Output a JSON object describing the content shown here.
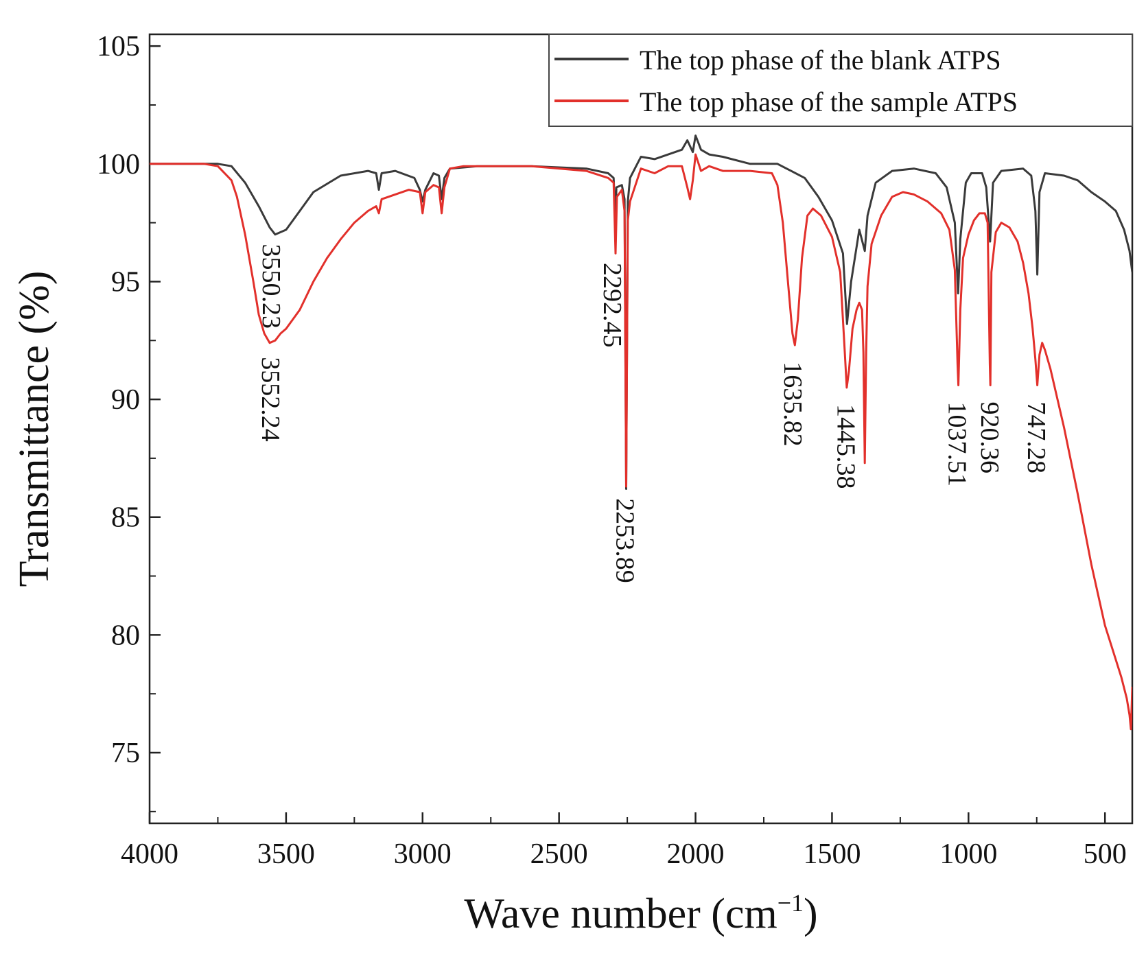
{
  "chart_data": {
    "type": "line",
    "title": "",
    "xlabel": "Wave number (cm",
    "xlabel_sup": "−1",
    "xlabel_close": ")",
    "ylabel": "Transmittance (%)",
    "xlim": [
      4000,
      400
    ],
    "ylim": [
      72,
      105.5
    ],
    "x_reversed": true,
    "grid": false,
    "legend_position": "top-right",
    "x_ticks": [
      4000,
      3500,
      3000,
      2500,
      2000,
      1500,
      1000,
      500
    ],
    "x_tick_labels": [
      "4000",
      "3500",
      "3000",
      "2500",
      "2000",
      "1500",
      "1000",
      "500"
    ],
    "y_ticks": [
      75,
      80,
      85,
      90,
      95,
      100,
      105
    ],
    "y_tick_labels": [
      "75",
      "80",
      "85",
      "90",
      "95",
      "100",
      "105"
    ],
    "series": [
      {
        "name": "The top phase of the blank ATPS",
        "color": "#3a3a3a",
        "points": [
          [
            4000,
            100.0
          ],
          [
            3900,
            100.0
          ],
          [
            3750,
            100.0
          ],
          [
            3700,
            99.9
          ],
          [
            3650,
            99.2
          ],
          [
            3600,
            98.2
          ],
          [
            3560,
            97.3
          ],
          [
            3540,
            97.0
          ],
          [
            3500,
            97.2
          ],
          [
            3450,
            98.0
          ],
          [
            3400,
            98.8
          ],
          [
            3300,
            99.5
          ],
          [
            3200,
            99.7
          ],
          [
            3170,
            99.6
          ],
          [
            3160,
            98.9
          ],
          [
            3150,
            99.6
          ],
          [
            3100,
            99.7
          ],
          [
            3030,
            99.4
          ],
          [
            3010,
            98.9
          ],
          [
            3000,
            98.4
          ],
          [
            2990,
            98.9
          ],
          [
            2960,
            99.6
          ],
          [
            2940,
            99.5
          ],
          [
            2930,
            98.5
          ],
          [
            2920,
            99.4
          ],
          [
            2900,
            99.8
          ],
          [
            2800,
            99.9
          ],
          [
            2600,
            99.9
          ],
          [
            2400,
            99.8
          ],
          [
            2320,
            99.6
          ],
          [
            2300,
            99.4
          ],
          [
            2293,
            97.5
          ],
          [
            2290,
            99.0
          ],
          [
            2270,
            99.1
          ],
          [
            2260,
            98.5
          ],
          [
            2254,
            86.2
          ],
          [
            2248,
            98.4
          ],
          [
            2240,
            99.4
          ],
          [
            2200,
            100.3
          ],
          [
            2150,
            100.2
          ],
          [
            2100,
            100.4
          ],
          [
            2050,
            100.6
          ],
          [
            2030,
            101.0
          ],
          [
            2010,
            100.5
          ],
          [
            2000,
            101.2
          ],
          [
            1980,
            100.6
          ],
          [
            1950,
            100.4
          ],
          [
            1900,
            100.3
          ],
          [
            1800,
            100.0
          ],
          [
            1700,
            100.0
          ],
          [
            1650,
            99.7
          ],
          [
            1600,
            99.4
          ],
          [
            1550,
            98.6
          ],
          [
            1500,
            97.6
          ],
          [
            1460,
            96.2
          ],
          [
            1445,
            93.2
          ],
          [
            1430,
            95.0
          ],
          [
            1400,
            97.2
          ],
          [
            1380,
            96.3
          ],
          [
            1370,
            97.8
          ],
          [
            1340,
            99.2
          ],
          [
            1280,
            99.7
          ],
          [
            1200,
            99.8
          ],
          [
            1120,
            99.6
          ],
          [
            1080,
            99.0
          ],
          [
            1050,
            97.5
          ],
          [
            1038,
            94.5
          ],
          [
            1030,
            96.8
          ],
          [
            1010,
            99.2
          ],
          [
            990,
            99.6
          ],
          [
            950,
            99.6
          ],
          [
            935,
            99.0
          ],
          [
            921,
            96.7
          ],
          [
            910,
            99.2
          ],
          [
            880,
            99.7
          ],
          [
            800,
            99.8
          ],
          [
            770,
            99.5
          ],
          [
            755,
            98.0
          ],
          [
            748,
            95.3
          ],
          [
            740,
            98.8
          ],
          [
            720,
            99.6
          ],
          [
            650,
            99.5
          ],
          [
            600,
            99.3
          ],
          [
            550,
            98.8
          ],
          [
            500,
            98.4
          ],
          [
            460,
            98.0
          ],
          [
            430,
            97.2
          ],
          [
            410,
            96.3
          ],
          [
            400,
            95.4
          ]
        ]
      },
      {
        "name": "The top phase of the sample ATPS",
        "color": "#e2302b",
        "points": [
          [
            4000,
            100.0
          ],
          [
            3900,
            100.0
          ],
          [
            3800,
            100.0
          ],
          [
            3750,
            99.9
          ],
          [
            3700,
            99.3
          ],
          [
            3680,
            98.6
          ],
          [
            3650,
            97.0
          ],
          [
            3620,
            95.0
          ],
          [
            3600,
            93.6
          ],
          [
            3580,
            92.8
          ],
          [
            3560,
            92.4
          ],
          [
            3540,
            92.5
          ],
          [
            3520,
            92.8
          ],
          [
            3500,
            93.0
          ],
          [
            3450,
            93.8
          ],
          [
            3400,
            95.0
          ],
          [
            3350,
            96.0
          ],
          [
            3300,
            96.8
          ],
          [
            3250,
            97.5
          ],
          [
            3200,
            98.0
          ],
          [
            3170,
            98.2
          ],
          [
            3160,
            97.9
          ],
          [
            3150,
            98.5
          ],
          [
            3100,
            98.7
          ],
          [
            3050,
            98.9
          ],
          [
            3010,
            98.8
          ],
          [
            3000,
            97.9
          ],
          [
            2990,
            98.8
          ],
          [
            2960,
            99.1
          ],
          [
            2940,
            99.0
          ],
          [
            2930,
            97.9
          ],
          [
            2920,
            99.0
          ],
          [
            2900,
            99.8
          ],
          [
            2850,
            99.9
          ],
          [
            2800,
            99.9
          ],
          [
            2600,
            99.9
          ],
          [
            2400,
            99.7
          ],
          [
            2320,
            99.4
          ],
          [
            2300,
            99.2
          ],
          [
            2293,
            96.2
          ],
          [
            2288,
            98.6
          ],
          [
            2270,
            98.9
          ],
          [
            2260,
            98.0
          ],
          [
            2254,
            86.3
          ],
          [
            2248,
            97.6
          ],
          [
            2240,
            98.4
          ],
          [
            2200,
            99.8
          ],
          [
            2150,
            99.6
          ],
          [
            2100,
            99.9
          ],
          [
            2050,
            99.9
          ],
          [
            2030,
            99.0
          ],
          [
            2020,
            98.5
          ],
          [
            2010,
            99.3
          ],
          [
            2000,
            100.4
          ],
          [
            1980,
            99.7
          ],
          [
            1950,
            99.9
          ],
          [
            1900,
            99.7
          ],
          [
            1800,
            99.7
          ],
          [
            1720,
            99.6
          ],
          [
            1700,
            99.1
          ],
          [
            1680,
            97.5
          ],
          [
            1660,
            94.8
          ],
          [
            1645,
            92.8
          ],
          [
            1636,
            92.3
          ],
          [
            1625,
            93.4
          ],
          [
            1610,
            96.0
          ],
          [
            1590,
            97.8
          ],
          [
            1570,
            98.1
          ],
          [
            1540,
            97.8
          ],
          [
            1500,
            96.9
          ],
          [
            1470,
            95.4
          ],
          [
            1455,
            92.4
          ],
          [
            1446,
            90.5
          ],
          [
            1438,
            91.2
          ],
          [
            1425,
            93.0
          ],
          [
            1410,
            93.8
          ],
          [
            1400,
            94.1
          ],
          [
            1390,
            93.8
          ],
          [
            1385,
            92.0
          ],
          [
            1380,
            87.3
          ],
          [
            1375,
            92.0
          ],
          [
            1370,
            94.8
          ],
          [
            1355,
            96.6
          ],
          [
            1320,
            97.8
          ],
          [
            1280,
            98.6
          ],
          [
            1240,
            98.8
          ],
          [
            1200,
            98.7
          ],
          [
            1150,
            98.4
          ],
          [
            1100,
            97.9
          ],
          [
            1070,
            97.2
          ],
          [
            1050,
            95.5
          ],
          [
            1040,
            91.5
          ],
          [
            1037,
            90.6
          ],
          [
            1030,
            93.8
          ],
          [
            1020,
            96.0
          ],
          [
            1000,
            97.0
          ],
          [
            980,
            97.6
          ],
          [
            960,
            97.9
          ],
          [
            940,
            97.9
          ],
          [
            930,
            97.5
          ],
          [
            922,
            91.5
          ],
          [
            920,
            90.6
          ],
          [
            916,
            95.4
          ],
          [
            900,
            97.1
          ],
          [
            880,
            97.5
          ],
          [
            850,
            97.3
          ],
          [
            820,
            96.7
          ],
          [
            800,
            95.8
          ],
          [
            780,
            94.5
          ],
          [
            765,
            93.0
          ],
          [
            755,
            91.7
          ],
          [
            748,
            90.6
          ],
          [
            740,
            91.9
          ],
          [
            730,
            92.4
          ],
          [
            720,
            92.1
          ],
          [
            700,
            91.3
          ],
          [
            650,
            88.8
          ],
          [
            600,
            86.0
          ],
          [
            550,
            83.0
          ],
          [
            500,
            80.4
          ],
          [
            470,
            79.3
          ],
          [
            440,
            78.2
          ],
          [
            420,
            77.3
          ],
          [
            410,
            76.6
          ],
          [
            405,
            76.0
          ],
          [
            402,
            77.0
          ],
          [
            400,
            77.8
          ]
        ]
      }
    ],
    "annotations": [
      {
        "text": "3550.23",
        "x": 3550,
        "y": 96.6,
        "color": "#222222"
      },
      {
        "text": "3552.24",
        "x": 3552,
        "y": 91.8,
        "color": "#222222"
      },
      {
        "text": "2292.45",
        "x": 2300,
        "y": 95.8,
        "color": "#222222"
      },
      {
        "text": "2253.89",
        "x": 2254,
        "y": 85.8,
        "color": "#222222"
      },
      {
        "text": "1635.82",
        "x": 1640,
        "y": 91.6,
        "color": "#222222"
      },
      {
        "text": "1445.38",
        "x": 1445,
        "y": 89.8,
        "color": "#222222"
      },
      {
        "text": "1037.51",
        "x": 1037,
        "y": 89.9,
        "color": "#222222"
      },
      {
        "text": "920.36",
        "x": 918,
        "y": 89.9,
        "color": "#222222"
      },
      {
        "text": "747.28",
        "x": 747,
        "y": 89.9,
        "color": "#222222"
      }
    ]
  }
}
